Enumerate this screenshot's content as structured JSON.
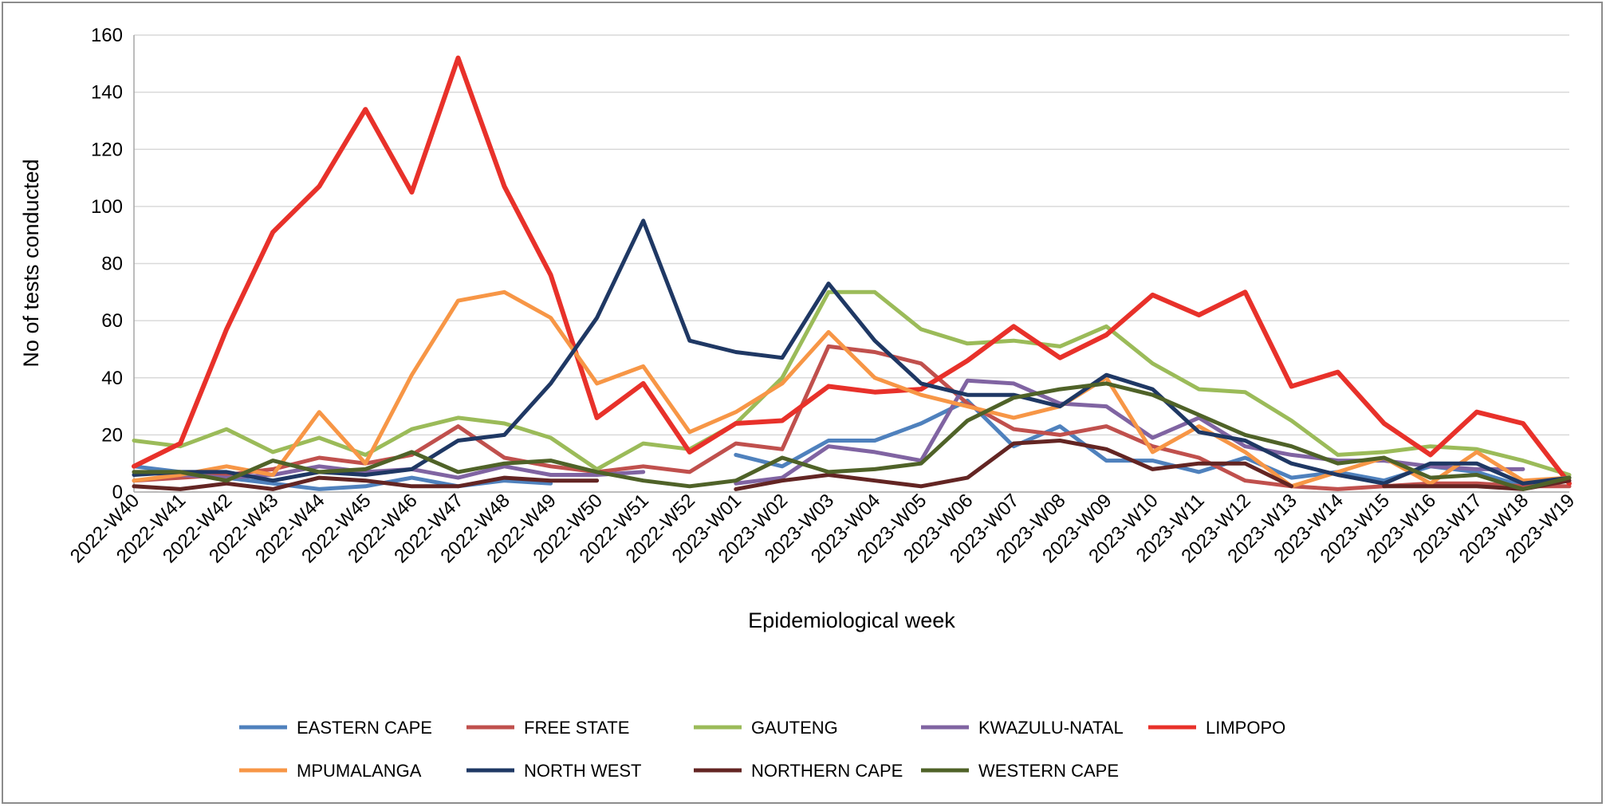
{
  "chart_data": {
    "type": "line",
    "title": "",
    "xlabel": "Epidemiological week",
    "ylabel": "No of tests conducted",
    "ylim": [
      0,
      160
    ],
    "yticks": [
      0,
      20,
      40,
      60,
      80,
      100,
      120,
      140,
      160
    ],
    "grid": true,
    "legend_position": "bottom",
    "x": [
      "2022-W40",
      "2022-W41",
      "2022-W42",
      "2022-W43",
      "2022-W44",
      "2022-W45",
      "2022-W46",
      "2022-W47",
      "2022-W48",
      "2022-W49",
      "2022-W50",
      "2022-W51",
      "2022-W52",
      "2023-W01",
      "2023-W02",
      "2023-W03",
      "2023-W04",
      "2023-W05",
      "2023-W06",
      "2023-W07",
      "2023-W08",
      "2023-W09",
      "2023-W10",
      "2023-W11",
      "2023-W12",
      "2023-W13",
      "2023-W14",
      "2023-W15",
      "2023-W16",
      "2023-W17",
      "2023-W18",
      "2023-W19"
    ],
    "series": [
      {
        "name": "EASTERN CAPE",
        "color": "#4f81bd",
        "values": [
          9,
          7,
          5,
          3,
          1,
          2,
          5,
          2,
          4,
          3,
          null,
          null,
          null,
          13,
          9,
          18,
          18,
          24,
          32,
          16,
          23,
          11,
          11,
          7,
          12,
          5,
          7,
          4,
          9,
          7,
          2,
          5
        ]
      },
      {
        "name": "FREE STATE",
        "color": "#c0504d",
        "values": [
          4,
          5,
          6,
          8,
          12,
          10,
          13,
          23,
          12,
          9,
          7,
          9,
          7,
          17,
          15,
          51,
          49,
          45,
          31,
          22,
          20,
          23,
          16,
          12,
          4,
          2,
          1,
          2,
          3,
          3,
          2,
          2
        ]
      },
      {
        "name": "GAUTENG",
        "color": "#9bbb59",
        "values": [
          18,
          16,
          22,
          14,
          19,
          13,
          22,
          26,
          24,
          19,
          8,
          17,
          15,
          24,
          40,
          70,
          70,
          57,
          52,
          53,
          51,
          58,
          45,
          36,
          35,
          25,
          13,
          14,
          16,
          15,
          11,
          6
        ]
      },
      {
        "name": "KWAZULU-NATAL",
        "color": "#8064a2",
        "values": [
          7,
          6,
          5,
          6,
          9,
          7,
          8,
          5,
          9,
          6,
          6,
          7,
          null,
          3,
          5,
          16,
          14,
          11,
          39,
          38,
          31,
          30,
          19,
          26,
          16,
          13,
          11,
          11,
          9,
          8,
          8,
          null
        ]
      },
      {
        "name": "LIMPOPO",
        "color": "#e8312a",
        "values": [
          9,
          17,
          57,
          91,
          107,
          134,
          105,
          152,
          107,
          76,
          26,
          38,
          14,
          24,
          25,
          37,
          35,
          36,
          46,
          58,
          47,
          55,
          69,
          62,
          70,
          37,
          42,
          24,
          13,
          28,
          24,
          3
        ]
      },
      {
        "name": "MPUMALANGA",
        "color": "#f79646",
        "values": [
          4,
          6,
          9,
          6,
          28,
          10,
          41,
          67,
          70,
          61,
          38,
          44,
          21,
          28,
          38,
          56,
          40,
          34,
          30,
          26,
          30,
          40,
          14,
          23,
          14,
          2,
          7,
          12,
          3,
          14,
          4,
          5
        ]
      },
      {
        "name": "NORTH WEST",
        "color": "#1f3864",
        "values": [
          6,
          7,
          7,
          4,
          7,
          6,
          8,
          18,
          20,
          38,
          61,
          95,
          53,
          49,
          47,
          73,
          53,
          38,
          34,
          34,
          30,
          41,
          36,
          21,
          18,
          10,
          6,
          3,
          10,
          10,
          3,
          5
        ]
      },
      {
        "name": "NORTHERN CAPE",
        "color": "#632523",
        "values": [
          2,
          1,
          3,
          1,
          5,
          4,
          2,
          2,
          5,
          4,
          4,
          null,
          null,
          1,
          4,
          6,
          4,
          2,
          5,
          17,
          18,
          15,
          8,
          10,
          10,
          2,
          null,
          2,
          2,
          2,
          1,
          4
        ]
      },
      {
        "name": "WESTERN CAPE",
        "color": "#4f6228",
        "values": [
          7,
          7,
          4,
          11,
          7,
          8,
          14,
          7,
          10,
          11,
          7,
          4,
          2,
          4,
          12,
          7,
          8,
          10,
          25,
          33,
          36,
          38,
          34,
          27,
          20,
          16,
          10,
          12,
          5,
          6,
          1,
          5
        ]
      }
    ]
  }
}
